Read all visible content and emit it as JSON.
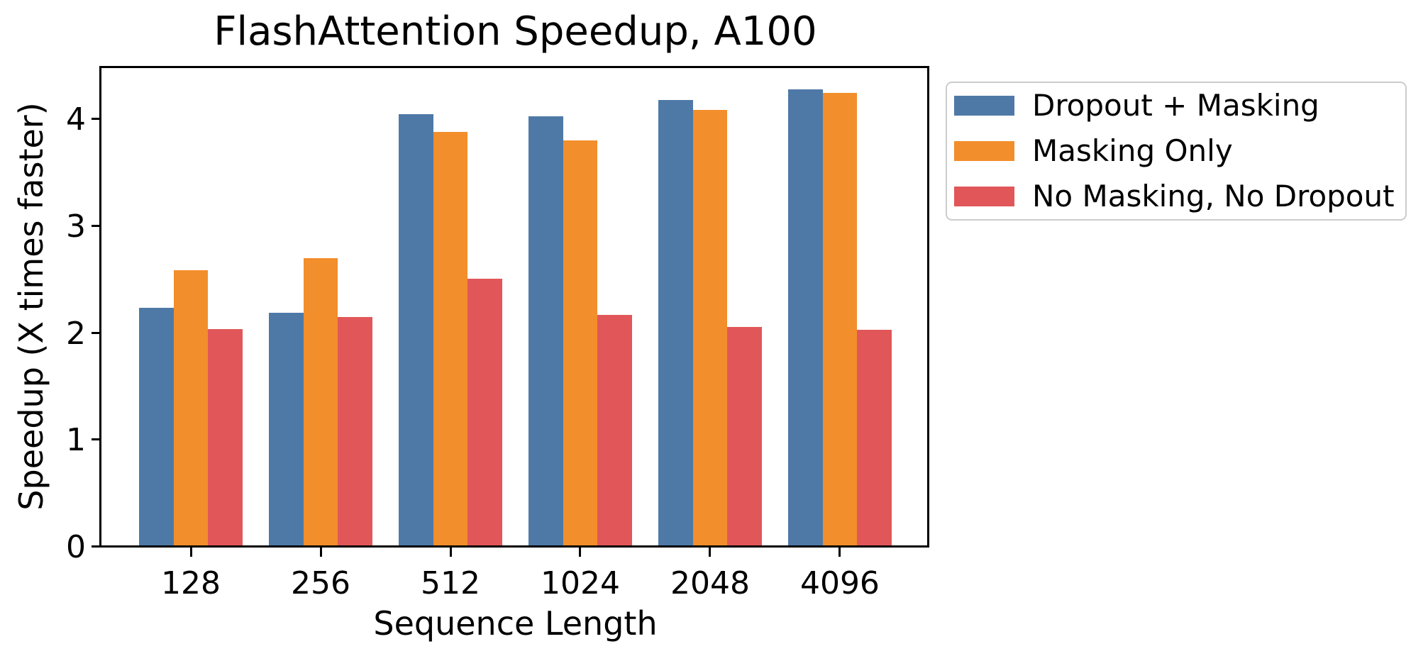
{
  "chart_data": {
    "type": "bar",
    "title": "FlashAttention Speedup, A100",
    "xlabel": "Sequence Length",
    "ylabel": "Speedup (X times faster)",
    "categories": [
      "128",
      "256",
      "512",
      "1024",
      "2048",
      "4096"
    ],
    "series": [
      {
        "name": "Dropout + Masking",
        "color": "#4E79A7",
        "values": [
          2.24,
          2.19,
          4.05,
          4.03,
          4.18,
          4.28
        ]
      },
      {
        "name": "Masking Only",
        "color": "#F28E2B",
        "values": [
          2.59,
          2.7,
          3.88,
          3.8,
          4.09,
          4.25
        ]
      },
      {
        "name": "No Masking, No Dropout",
        "color": "#E15759",
        "values": [
          2.04,
          2.15,
          2.51,
          2.17,
          2.06,
          2.03
        ]
      }
    ],
    "ylim": [
      0,
      4.5
    ],
    "yticks": [
      0,
      1,
      2,
      3,
      4
    ],
    "grid": false,
    "legend_position": "outside upper right",
    "background_color": "#ffffff",
    "axis_color": "#000000"
  }
}
